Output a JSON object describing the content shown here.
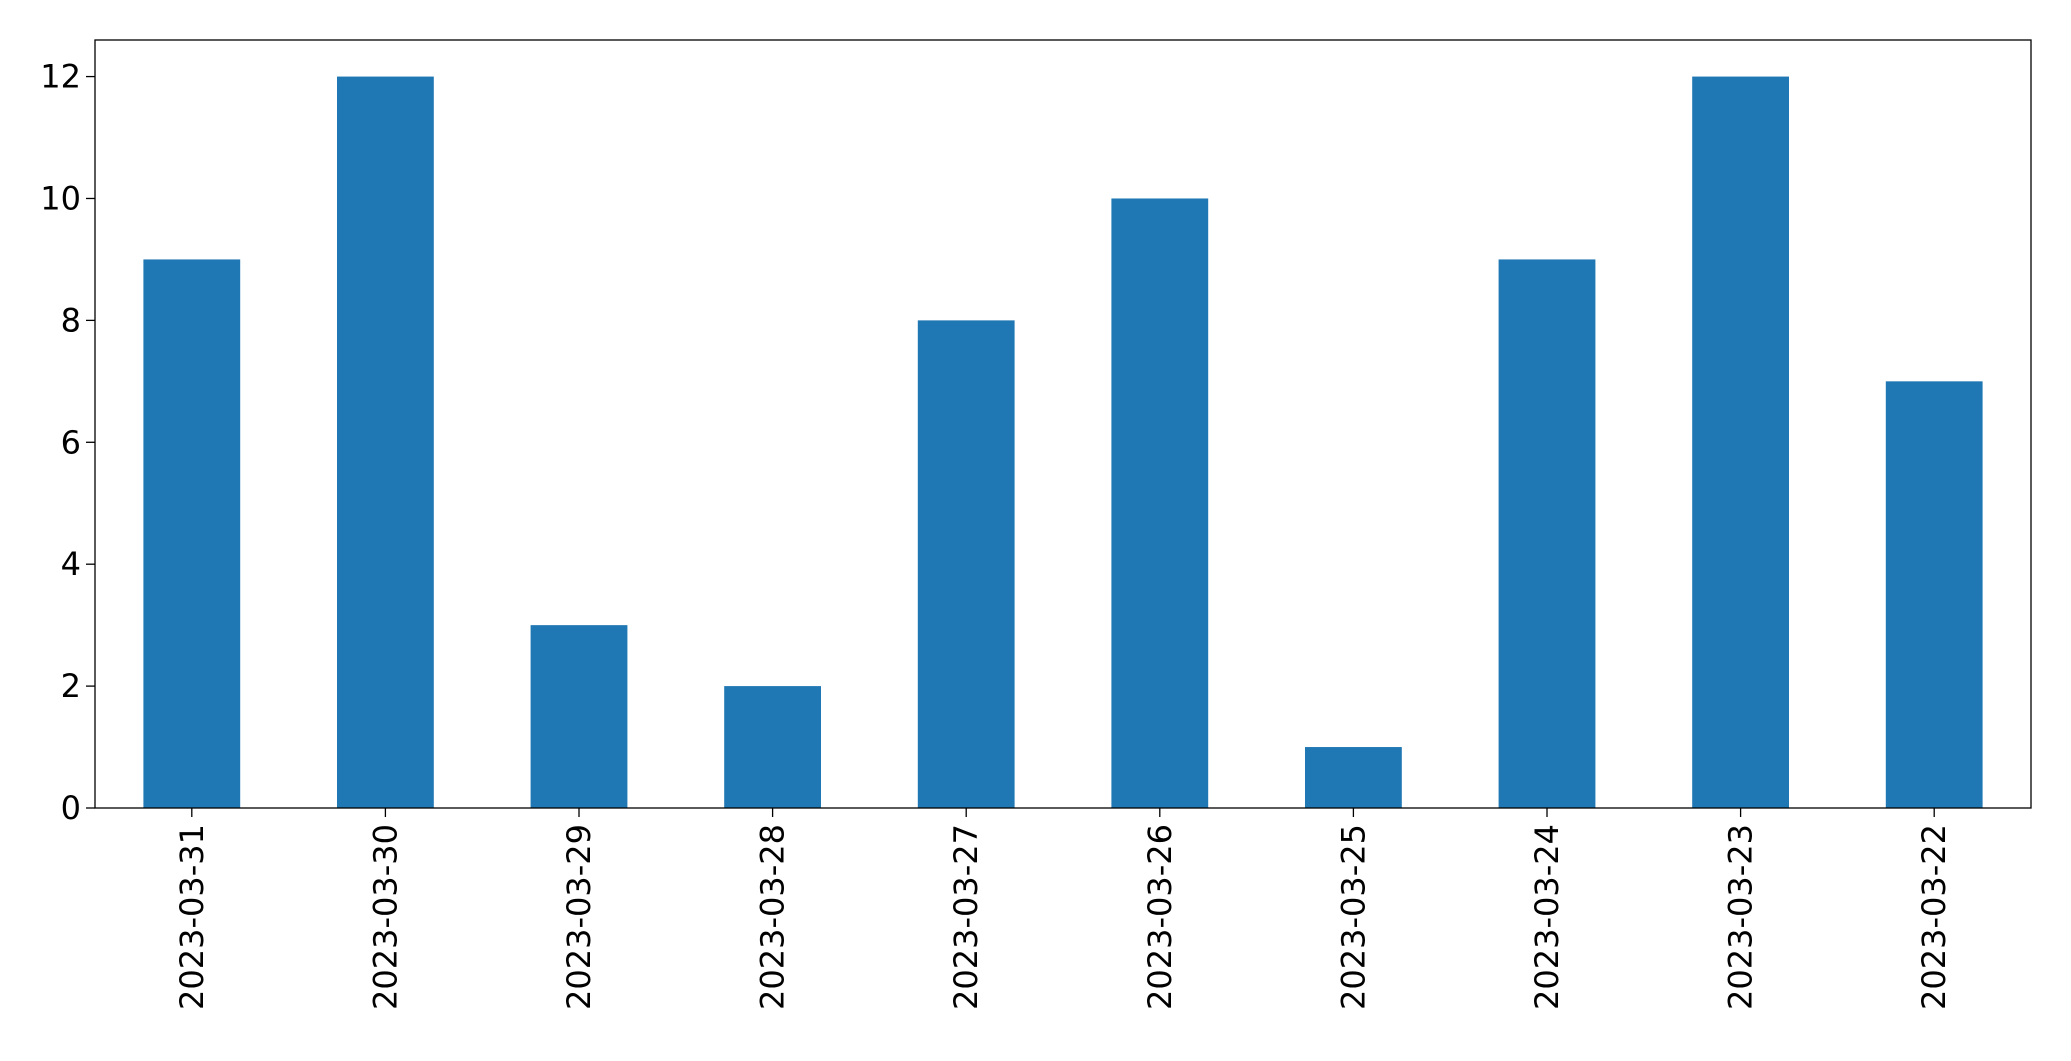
{
  "chart_data": {
    "type": "bar",
    "categories": [
      "2023-03-31",
      "2023-03-30",
      "2023-03-29",
      "2023-03-28",
      "2023-03-27",
      "2023-03-26",
      "2023-03-25",
      "2023-03-24",
      "2023-03-23",
      "2023-03-22"
    ],
    "values": [
      9,
      12,
      3,
      2,
      8,
      10,
      1,
      9,
      12,
      7
    ],
    "color": "#1f77b4",
    "ylim": [
      0,
      12.6
    ],
    "yticks": [
      0,
      2,
      4,
      6,
      8,
      10,
      12
    ],
    "grid": false
  }
}
